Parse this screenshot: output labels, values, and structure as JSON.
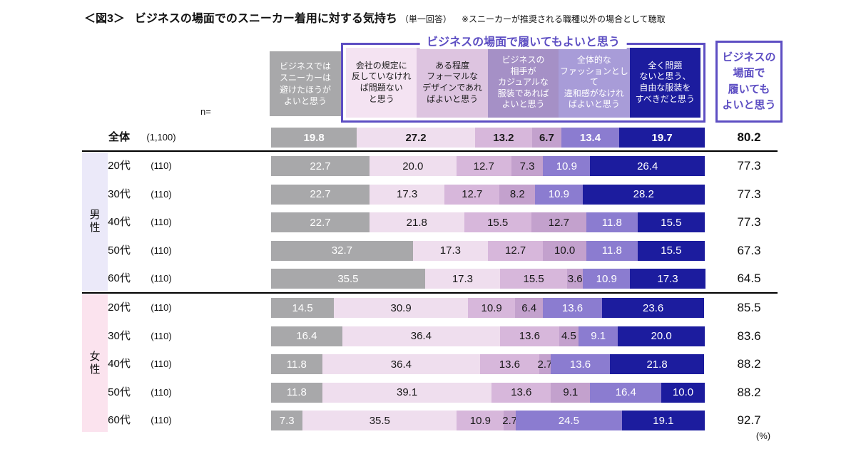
{
  "title": {
    "tag": "＜図3＞",
    "main": "ビジネスの場面でのスニーカー着用に対する気持ち",
    "note1": "（単一回答）",
    "note2": "※スニーカーが推奨される職種以外の場合として聴取"
  },
  "colors": {
    "accent": "#5d4ec3",
    "navy": "#1c1c9e",
    "segments": [
      "#a8a8aa",
      "#efdeee",
      "#d7b7db",
      "#c3a1cd",
      "#8b7cd0",
      "#1c1c9e"
    ],
    "segment_text": [
      "#ffffff",
      "#1a1a1a",
      "#1a1a1a",
      "#1a1a1a",
      "#ffffff",
      "#ffffff"
    ],
    "male_strip": "#ebe9f9",
    "female_strip": "#fbe3ee"
  },
  "header": {
    "n_label": "n=",
    "group_bracket_title": "ビジネスの場面で履いてもよいと思う",
    "right_box_label": "ビジネスの\n場面で\n履いても\nよいと思う",
    "categories": [
      {
        "label": "ビジネスでは\nスニーカーは\n避けたほうが\nよいと思う",
        "bg": "#a8a8aa",
        "fg": "#ffffff"
      },
      {
        "label": "会社の規定に\n反していなけれ\nば問題ない\nと思う",
        "bg": "#f4e3f2",
        "fg": "#1a1a1a"
      },
      {
        "label": "ある程度\nフォーマルな\nデザインであれ\nばよいと思う",
        "bg": "#ddc4e0",
        "fg": "#1a1a1a"
      },
      {
        "label": "ビジネスの\n相手が\nカジュアルな\n服装であれば\nよいと思う",
        "bg": "#a590c6",
        "fg": "#ffffff"
      },
      {
        "label": "全体的な\nファッションとして\n違和感がなけれ\nばよいと思う",
        "bg": "#a89cd8",
        "fg": "#ffffff"
      },
      {
        "label": "全く問題\nないと思う、\n自由な服装を\nすべきだと思う",
        "bg": "#1c1c9e",
        "fg": "#ffffff"
      }
    ]
  },
  "chart_data": {
    "type": "bar",
    "stacked": true,
    "orientation": "horizontal",
    "x_range": [
      0,
      100
    ],
    "unit": "(%)",
    "series_names": [
      "ビジネスではスニーカーは避けたほうがよいと思う",
      "会社の規定に反していなければ問題ないと思う",
      "ある程度フォーマルなデザインであればよいと思う",
      "ビジネスの相手がカジュアルな服装であればよいと思う",
      "全体的なファッションとして違和感がなければよいと思う",
      "全く問題ないと思う、自由な服装をすべきだと思う"
    ],
    "right_column_title": "ビジネスの場面で履いてもよいと思う",
    "gender_labels": {
      "male": "男性",
      "female": "女性"
    },
    "groups": [
      {
        "gender": "",
        "age": "全体",
        "n": "(1,100)",
        "values": [
          "19.8",
          "27.2",
          "13.2",
          "6.7",
          "13.4",
          "19.7"
        ],
        "total": "80.2",
        "emphasis": true
      },
      {
        "gender": "男性",
        "age": "20代",
        "n": "(110)",
        "values": [
          "22.7",
          "20.0",
          "12.7",
          "7.3",
          "10.9",
          "26.4"
        ],
        "total": "77.3"
      },
      {
        "gender": "男性",
        "age": "30代",
        "n": "(110)",
        "values": [
          "22.7",
          "17.3",
          "12.7",
          "8.2",
          "10.9",
          "28.2"
        ],
        "total": "77.3"
      },
      {
        "gender": "男性",
        "age": "40代",
        "n": "(110)",
        "values": [
          "22.7",
          "21.8",
          "15.5",
          "12.7",
          "11.8",
          "15.5"
        ],
        "total": "77.3"
      },
      {
        "gender": "男性",
        "age": "50代",
        "n": "(110)",
        "values": [
          "32.7",
          "17.3",
          "12.7",
          "10.0",
          "11.8",
          "15.5"
        ],
        "total": "67.3"
      },
      {
        "gender": "男性",
        "age": "60代",
        "n": "(110)",
        "values": [
          "35.5",
          "17.3",
          "15.5",
          "3.6",
          "10.9",
          "17.3"
        ],
        "total": "64.5"
      },
      {
        "gender": "女性",
        "age": "20代",
        "n": "(110)",
        "values": [
          "14.5",
          "30.9",
          "10.9",
          "6.4",
          "13.6",
          "23.6"
        ],
        "total": "85.5"
      },
      {
        "gender": "女性",
        "age": "30代",
        "n": "(110)",
        "values": [
          "16.4",
          "36.4",
          "13.6",
          "4.5",
          "9.1",
          "20.0"
        ],
        "total": "83.6"
      },
      {
        "gender": "女性",
        "age": "40代",
        "n": "(110)",
        "values": [
          "11.8",
          "36.4",
          "13.6",
          "2.7",
          "13.6",
          "21.8"
        ],
        "total": "88.2"
      },
      {
        "gender": "女性",
        "age": "50代",
        "n": "(110)",
        "values": [
          "11.8",
          "39.1",
          "13.6",
          "9.1",
          "16.4",
          "10.0"
        ],
        "total": "88.2"
      },
      {
        "gender": "女性",
        "age": "60代",
        "n": "(110)",
        "values": [
          "7.3",
          "35.5",
          "10.9",
          "2.7",
          "24.5",
          "19.1"
        ],
        "total": "92.7"
      }
    ]
  }
}
